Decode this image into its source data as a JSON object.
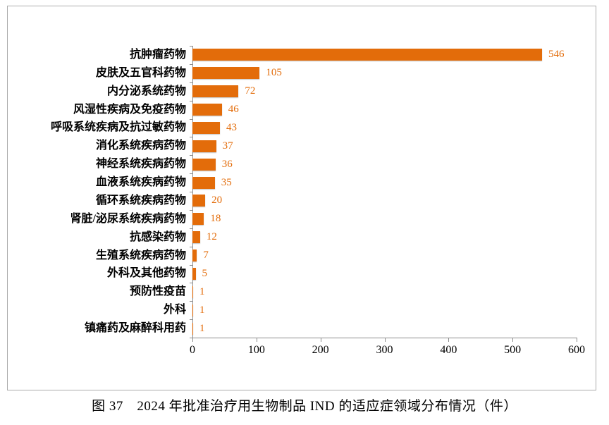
{
  "figure": {
    "caption": "图 37　2024 年批准治疗用生物制品 IND 的适应症领域分布情况（件）"
  },
  "chart_data": {
    "type": "bar",
    "orientation": "horizontal",
    "title": "",
    "xlabel": "",
    "ylabel": "",
    "categories": [
      "抗肿瘤药物",
      "皮肤及五官科药物",
      "内分泌系统药物",
      "风湿性疾病及免疫药物",
      "呼吸系统疾病及抗过敏药物",
      "消化系统疾病药物",
      "神经系统疾病药物",
      "血液系统疾病药物",
      "循环系统疾病药物",
      "肾脏/泌尿系统疾病药物",
      "抗感染药物",
      "生殖系统疾病药物",
      "外科及其他药物",
      "预防性疫苗",
      "外科",
      "镇痛药及麻醉科用药"
    ],
    "values": [
      546,
      105,
      72,
      46,
      43,
      37,
      36,
      35,
      20,
      18,
      12,
      7,
      5,
      1,
      1,
      1
    ],
    "xlim": [
      0,
      600
    ],
    "x_ticks": [
      0,
      100,
      200,
      300,
      400,
      500,
      600
    ],
    "data_labels": true,
    "grid": false,
    "legend": null,
    "colors": {
      "bar": "#e36c0a",
      "value_label": "#e36c0a",
      "axis_line": "#8c8c8c",
      "tick_label": "#000000",
      "figure_border": "#ababab"
    }
  }
}
